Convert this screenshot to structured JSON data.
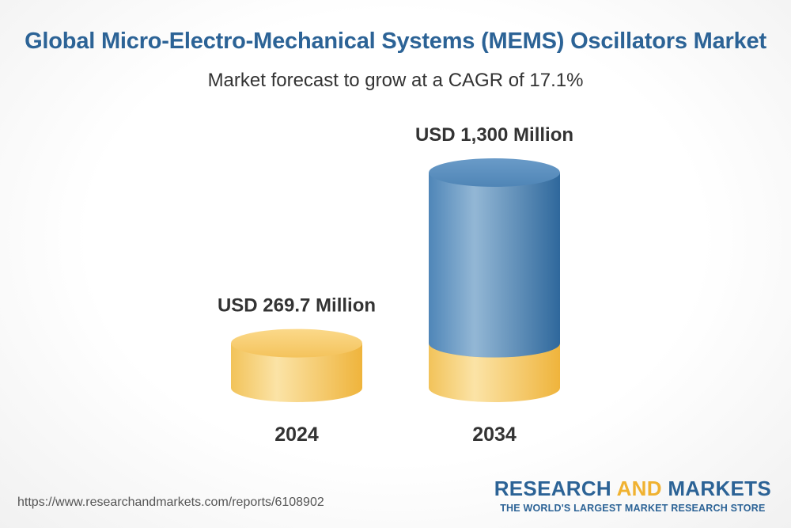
{
  "header": {
    "title": "Global Micro-Electro-Mechanical Systems (MEMS) Oscillators Market",
    "subtitle": "Market forecast to grow at a CAGR of 17.1%"
  },
  "colors": {
    "accent_blue": "#2c6396",
    "accent_gold": "#f0b231",
    "bar_blue": "#5b8fbd",
    "bar_gold": "#f5c96a"
  },
  "chart_data": {
    "type": "bar",
    "style": "3d-cylinder",
    "title": "Global Micro-Electro-Mechanical Systems (MEMS) Oscillators Market",
    "subtitle": "Market forecast to grow at a CAGR of 17.1%",
    "categories": [
      "2024",
      "2034"
    ],
    "values": [
      269.7,
      1300
    ],
    "value_labels": [
      "USD 269.7 Million",
      "USD 1,300 Million"
    ],
    "unit": "USD Million",
    "cagr": "17.1%"
  },
  "footer": {
    "url": "https://www.researchandmarkets.com/reports/6108902",
    "logo_part1": "RESEARCH",
    "logo_part2": "AND",
    "logo_part3": "MARKETS",
    "tagline": "THE WORLD'S LARGEST MARKET RESEARCH STORE"
  }
}
